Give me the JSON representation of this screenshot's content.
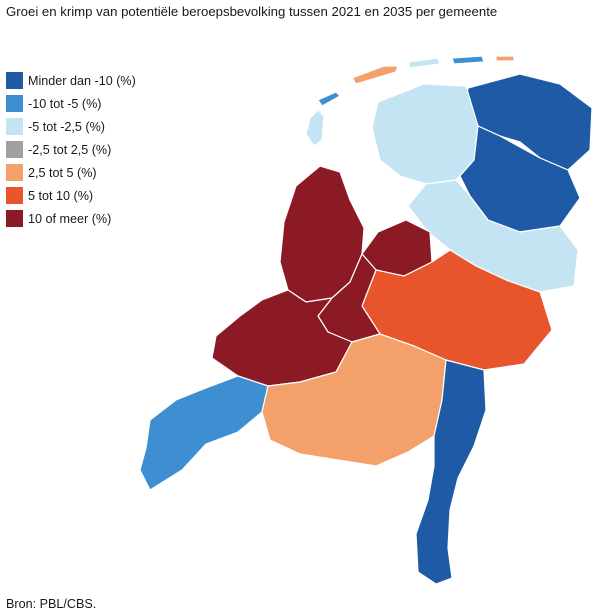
{
  "title": "Groei en krimp van potentiële beroepsbevolking tussen 2021 en 2035 per gemeente",
  "source": "Bron: PBL/CBS.",
  "legend": [
    {
      "label": "Minder dan -10 (%)",
      "color": "#1f5aa6"
    },
    {
      "label": "-10 tot -5 (%)",
      "color": "#3d8fd1"
    },
    {
      "label": "-5 tot -2,5 (%)",
      "color": "#c4e3f3"
    },
    {
      "label": "-2,5 tot 2,5 (%)",
      "color": "#a0a0a0"
    },
    {
      "label": "2,5 tot 5 (%)",
      "color": "#f4a06b"
    },
    {
      "label": "5 tot 10 (%)",
      "color": "#e8542b"
    },
    {
      "label": "10 of meer (%)",
      "color": "#8b1a24"
    }
  ],
  "map": {
    "regions": [
      {
        "name": "groningen-region",
        "class": 0
      },
      {
        "name": "friesland-region",
        "class": 2
      },
      {
        "name": "drenthe-region",
        "class": 0
      },
      {
        "name": "overijssel-region",
        "class": 2
      },
      {
        "name": "gelderland-region",
        "class": 5
      },
      {
        "name": "flevoland-region",
        "class": 6
      },
      {
        "name": "noord-holland-region",
        "class": 6
      },
      {
        "name": "zuid-holland-region",
        "class": 6
      },
      {
        "name": "utrecht-region",
        "class": 6
      },
      {
        "name": "zeeland-region",
        "class": 1
      },
      {
        "name": "noord-brabant-region",
        "class": 4
      },
      {
        "name": "limburg-region",
        "class": 0
      }
    ]
  }
}
